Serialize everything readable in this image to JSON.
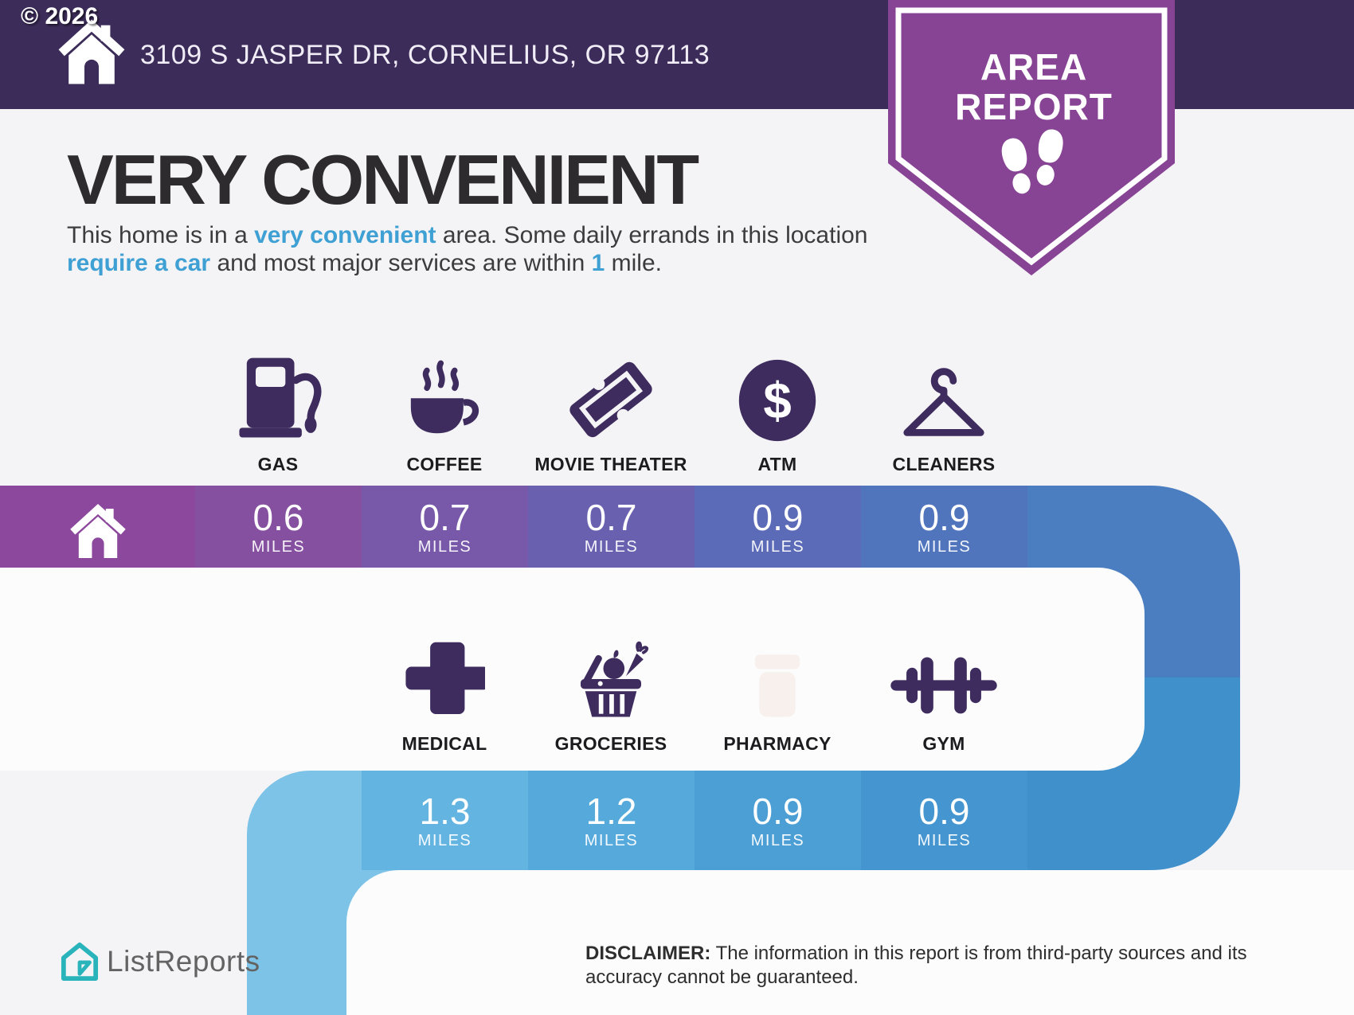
{
  "copyright": "© 2026",
  "header": {
    "address": "3109 S JASPER DR, CORNELIUS, OR 97113"
  },
  "badge": {
    "line1": "AREA",
    "line2": "REPORT"
  },
  "main": {
    "title": "VERY CONVENIENT"
  },
  "description": {
    "parts": [
      {
        "t": "This home is in a ",
        "hl": false
      },
      {
        "t": "very convenient",
        "hl": true
      },
      {
        "t": " area. Some daily errands in this location ",
        "hl": false
      },
      {
        "t": "require a car",
        "hl": true
      },
      {
        "t": " and most major services are within ",
        "hl": false
      },
      {
        "t": "1",
        "hl": true
      },
      {
        "t": " mile.",
        "hl": false
      }
    ]
  },
  "band1": {
    "cells": [
      {
        "label": "GAS",
        "value": "0.6",
        "unit": "MILES"
      },
      {
        "label": "COFFEE",
        "value": "0.7",
        "unit": "MILES"
      },
      {
        "label": "MOVIE THEATER",
        "value": "0.7",
        "unit": "MILES"
      },
      {
        "label": "ATM",
        "value": "0.9",
        "unit": "MILES"
      },
      {
        "label": "CLEANERS",
        "value": "0.9",
        "unit": "MILES"
      }
    ]
  },
  "band2": {
    "cells": [
      {
        "label": "MEDICAL",
        "value": "1.3",
        "unit": "MILES"
      },
      {
        "label": "GROCERIES",
        "value": "1.2",
        "unit": "MILES"
      },
      {
        "label": "PHARMACY",
        "value": "0.9",
        "unit": "MILES"
      },
      {
        "label": "GYM",
        "value": "0.9",
        "unit": "MILES"
      }
    ]
  },
  "footer": {
    "brand": "ListReports",
    "disclaimer_label": "DISCLAIMER:",
    "disclaimer_text": " The information in this report is from third-party sources and its accuracy cannot be guaranteed."
  },
  "colors": {
    "bg": "#f4f4f6",
    "header_bg": "#3c2c59",
    "badge": "#874394",
    "icon": "#3e2c5e",
    "title": "#2e2b2e",
    "text": "#3c3c3e",
    "label": "#1c1c1e",
    "highlight": "#3fa0d4",
    "card": "#fcfcfd",
    "band1_cells": [
      "#8c489c",
      "#85509f",
      "#7758a9",
      "#6961b0",
      "#5b6bb7",
      "#5075bd"
    ],
    "band2_cells": [
      "#64b4e2",
      "#55a9db",
      "#4b9fd5",
      "#4596d0"
    ],
    "turn_right_top": "#4a7ec1",
    "turn_right_bottom": "#4090cb",
    "turn_left": "#7dc3e8",
    "logo_teal": "#28b4ba",
    "brand_text": "#636363"
  }
}
